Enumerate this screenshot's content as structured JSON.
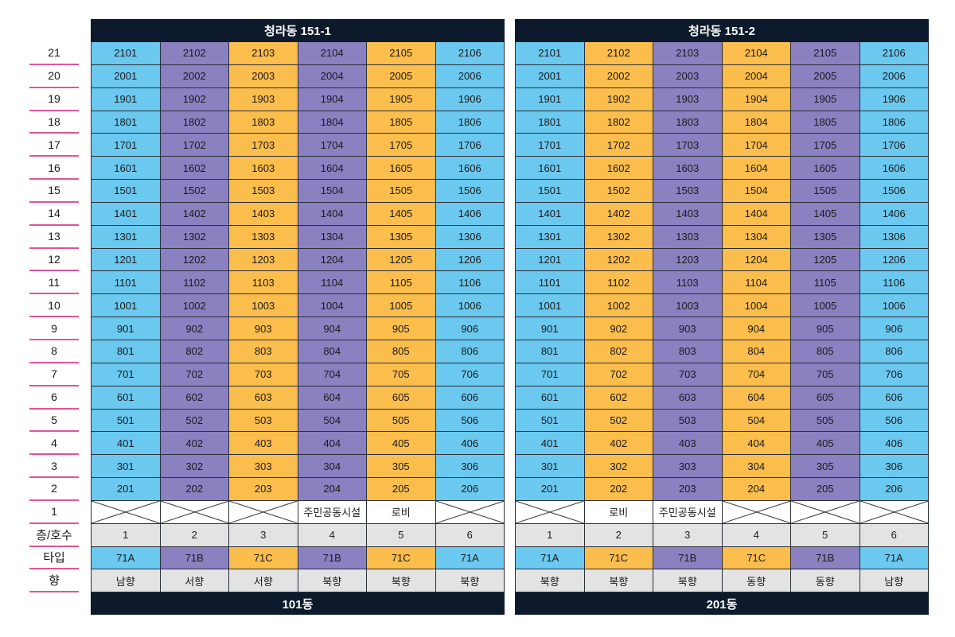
{
  "floor_labels": [
    "21",
    "20",
    "19",
    "18",
    "17",
    "16",
    "15",
    "14",
    "13",
    "12",
    "11",
    "10",
    "9",
    "8",
    "7",
    "6",
    "5",
    "4",
    "3",
    "2",
    "1"
  ],
  "row_labels": {
    "unit": "층/호수",
    "type": "타입",
    "direction": "향"
  },
  "colors": {
    "blue": "#6bc8ef",
    "purple": "#8b80c0",
    "orange": "#fbbd4c",
    "header": "#0c1a2b",
    "pink_rule": "#e0549a",
    "gray": "#e3e3e3"
  },
  "buildings": [
    {
      "title": "청라동 151-1",
      "footer": "101동",
      "unit_numbers": [
        "1",
        "2",
        "3",
        "4",
        "5",
        "6"
      ],
      "column_colors": [
        "blue",
        "purple",
        "orange",
        "purple",
        "orange",
        "blue"
      ],
      "ground_floor": [
        "",
        "",
        "",
        "주민공동시설",
        "로비",
        ""
      ],
      "types": [
        "71A",
        "71B",
        "71C",
        "71B",
        "71C",
        "71A"
      ],
      "directions": [
        "남향",
        "서향",
        "서향",
        "북향",
        "북향",
        "북향"
      ]
    },
    {
      "title": "청라동 151-2",
      "footer": "201동",
      "unit_numbers": [
        "1",
        "2",
        "3",
        "4",
        "5",
        "6"
      ],
      "column_colors": [
        "blue",
        "orange",
        "purple",
        "orange",
        "purple",
        "blue"
      ],
      "ground_floor": [
        "",
        "로비",
        "주민공동시설",
        "",
        "",
        ""
      ],
      "types": [
        "71A",
        "71C",
        "71B",
        "71C",
        "71B",
        "71A"
      ],
      "directions": [
        "북향",
        "북향",
        "북향",
        "동향",
        "동향",
        "남향"
      ]
    }
  ]
}
